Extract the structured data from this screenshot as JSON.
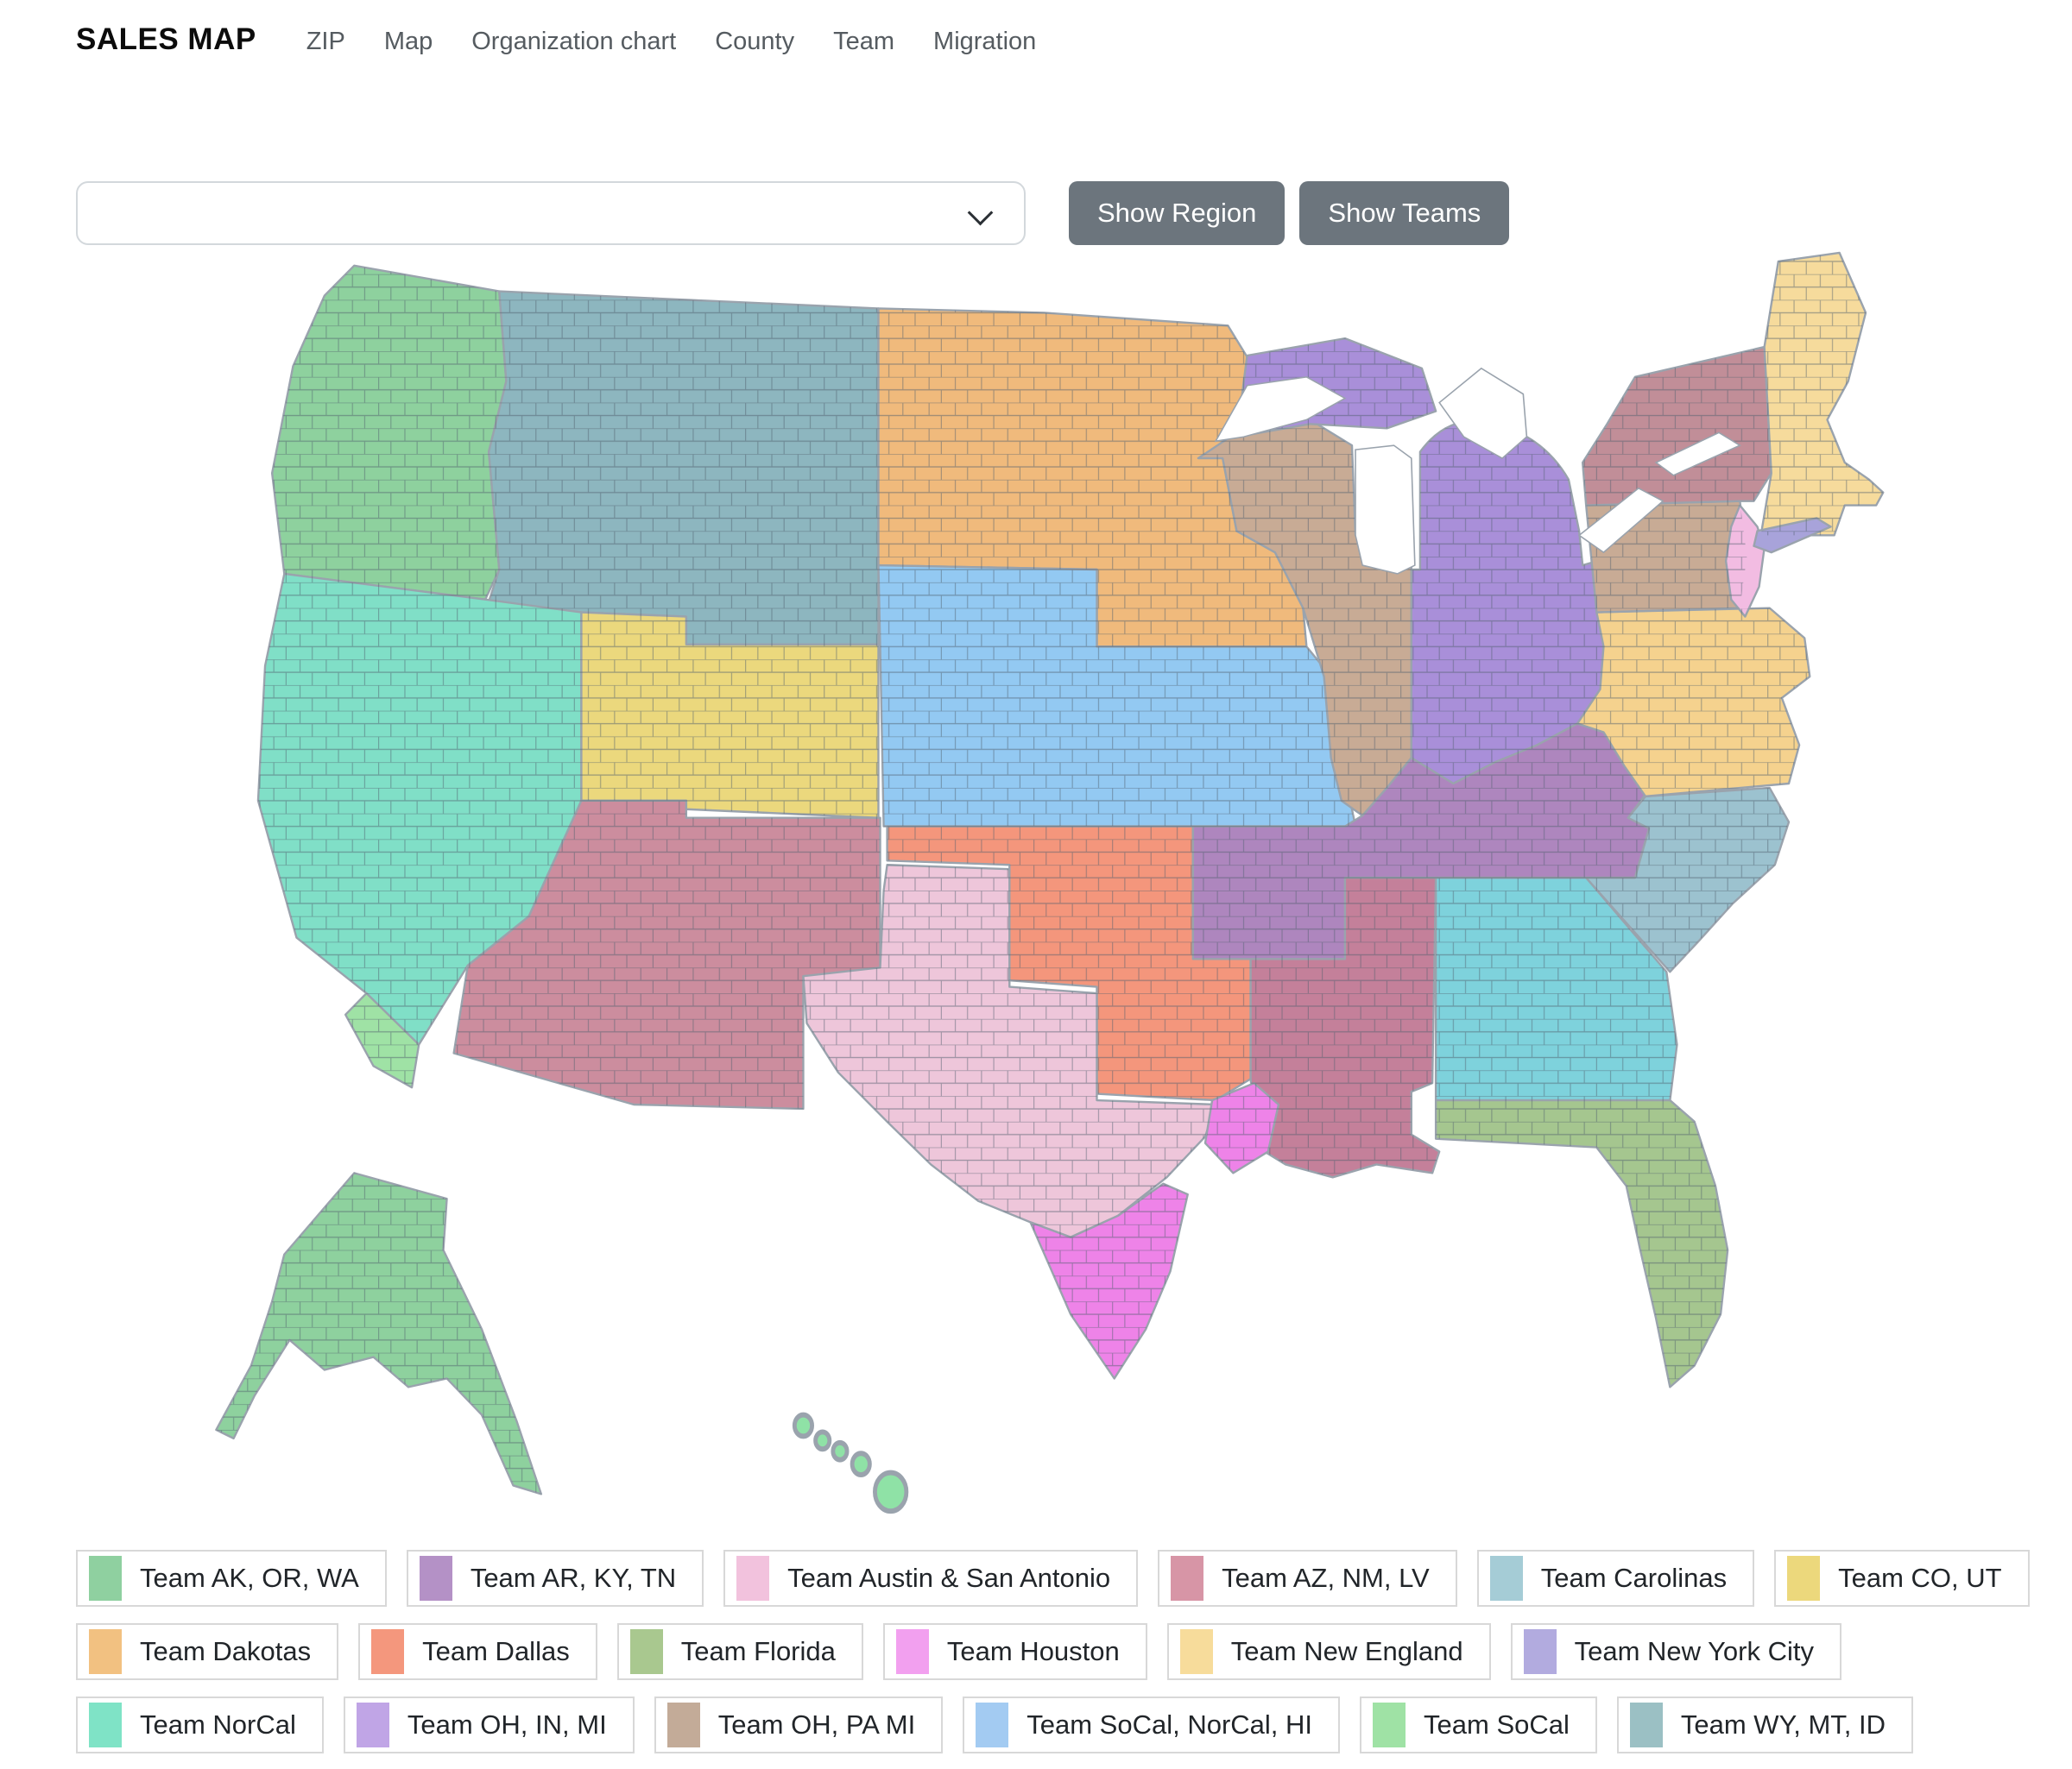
{
  "header": {
    "title": "SALES MAP",
    "nav": [
      "ZIP",
      "Map",
      "Organization chart",
      "County",
      "Team",
      "Migration"
    ]
  },
  "controls": {
    "region_select": {
      "value": "",
      "placeholder": ""
    },
    "buttons": [
      {
        "label": "Show Region"
      },
      {
        "label": "Show Teams"
      }
    ]
  },
  "map": {
    "region_colors": {
      "pnw": "#8ed19e",
      "mtn": "#8db6bf",
      "calnev": "#80dfc7",
      "socal": "#9fe2a5",
      "cout": "#ebd87d",
      "sw": "#cc8d9e",
      "dak": "#f0ba7c",
      "plains": "#93c9f2",
      "dallas": "#f4967c",
      "wtx": "#eec6da",
      "stx": "#ee83e8",
      "hou": "#ee83e8",
      "lams": "#c4809a",
      "wiil": "#c8ab95",
      "up": "#a98fd9",
      "mioh": "#a98fd9",
      "kytn": "#ae86be",
      "alga": "#7ed2dc",
      "ncsc": "#9cc2cf",
      "vawv": "#f5d28e",
      "pa": "#c8ab95",
      "ny": "#c18e98",
      "neweng": "#f6db9c",
      "nj": "#f2bce2",
      "li": "#a8a3da",
      "fl": "#a5c68f",
      "ak": "#8ed19e",
      "hi": "#8fe2a6"
    }
  },
  "legend": {
    "rows": [
      [
        {
          "label": "Team AK, OR, WA",
          "color": "#8fd0a0"
        },
        {
          "label": "Team AR, KY, TN",
          "color": "#b491c6"
        },
        {
          "label": "Team Austin & San Antonio",
          "color": "#f2c2dd"
        },
        {
          "label": "Team AZ, NM, LV",
          "color": "#d795a6"
        },
        {
          "label": "Team Carolinas",
          "color": "#a5ccd6"
        },
        {
          "label": "Team CO, UT",
          "color": "#ecd87c"
        }
      ],
      [
        {
          "label": "Team Dakotas",
          "color": "#f2c181"
        },
        {
          "label": "Team Dallas",
          "color": "#f4977d"
        },
        {
          "label": "Team Florida",
          "color": "#a9c88f"
        },
        {
          "label": "Team Houston",
          "color": "#f2a0ef"
        },
        {
          "label": "Team New England",
          "color": "#f7dc9b"
        },
        {
          "label": "Team New York City",
          "color": "#b2abdf"
        }
      ],
      [
        {
          "label": "Team NorCal",
          "color": "#7fe3c6"
        },
        {
          "label": "Team OH, IN, MI",
          "color": "#c0a5e6"
        },
        {
          "label": "Team OH, PA MI",
          "color": "#c3ab98"
        },
        {
          "label": "Team SoCal, NorCal, HI",
          "color": "#a3cbf2"
        },
        {
          "label": "Team SoCal",
          "color": "#9fe2a5"
        },
        {
          "label": "Team WY, MT, ID",
          "color": "#9bc0c4"
        }
      ]
    ]
  }
}
